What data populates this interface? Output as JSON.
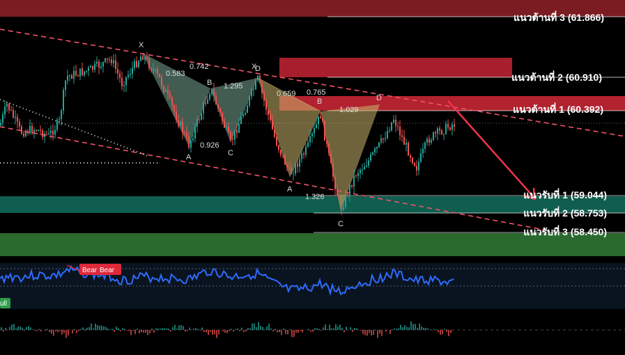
{
  "chart_data": {
    "type": "candlestick",
    "resistance_levels": [
      {
        "label": "แนวต้านที่ 3 (61.866)",
        "value": 61.866
      },
      {
        "label": "แนวต้านที่ 2 (60.910)",
        "value": 60.91
      },
      {
        "label": "แนวต้านที่ 1 (60.392)",
        "value": 60.392
      }
    ],
    "support_levels": [
      {
        "label": "แนวรับที่ 1 (59.044)",
        "value": 59.044
      },
      {
        "label": "แนวรับที่ 2 (58.753)",
        "value": 58.753
      },
      {
        "label": "แนวรับที่ 3 (58.450)",
        "value": 58.45
      }
    ],
    "pattern_labels": [
      "X",
      "A",
      "B",
      "C",
      "D"
    ],
    "pattern_ratios": [
      "0.583",
      "0.742",
      "0.926",
      "1.295",
      "0.659",
      "0.765",
      "1.029",
      "1.326"
    ],
    "indicator_badges": [
      "Bear",
      "Bear",
      "ull"
    ],
    "colors": {
      "resistance_zone": "#b2222f",
      "support_zone": "#0f5e4f",
      "support_zone_low": "#2a6a2f",
      "candle_up": "#26a69a",
      "candle_down": "#ef5350",
      "trendline": "#f2546a",
      "oscillator": "#2e6bff",
      "pattern_green": "#7fa08f",
      "pattern_yellow": "#c9b46a",
      "bear_badge": "#e0283b",
      "bull_badge": "#2e9e48"
    }
  }
}
